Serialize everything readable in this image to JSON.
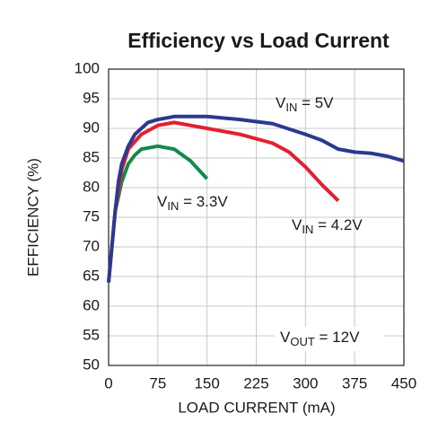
{
  "chart_data": {
    "type": "line",
    "title": "Efficiency vs Load Current",
    "x_label": "LOAD CURRENT (mA)",
    "y_label": "EFFICIENCY (%)",
    "xlim": [
      0,
      450
    ],
    "ylim": [
      50,
      100
    ],
    "xticks": [
      0,
      75,
      150,
      225,
      300,
      375,
      450
    ],
    "yticks": [
      50,
      55,
      60,
      65,
      70,
      75,
      80,
      85,
      90,
      95,
      100
    ],
    "grid": true,
    "series": [
      {
        "label": {
          "main": "V",
          "sub": "IN",
          "tail": " = 5V"
        },
        "color": "#2b3990",
        "x": [
          0,
          5,
          10,
          15,
          20,
          30,
          40,
          50,
          60,
          75,
          100,
          150,
          200,
          250,
          300,
          325,
          350,
          375,
          400,
          425,
          450
        ],
        "values": [
          64,
          70,
          76,
          81,
          84,
          87,
          89,
          90,
          91,
          91.5,
          92,
          92,
          91.5,
          90.8,
          89,
          88,
          86.5,
          86,
          85.8,
          85.3,
          84.5
        ]
      },
      {
        "label": {
          "main": "V",
          "sub": "IN",
          "tail": " = 4.2V"
        },
        "color": "#e3202d",
        "x": [
          0,
          5,
          10,
          20,
          30,
          50,
          75,
          100,
          125,
          150,
          200,
          250,
          275,
          300,
          325,
          350
        ],
        "values": [
          64,
          70,
          76,
          83,
          86.5,
          89,
          90.5,
          91,
          90.5,
          90,
          89,
          87.5,
          86,
          83.5,
          80.5,
          77.8
        ]
      },
      {
        "label": {
          "main": "V",
          "sub": "IN",
          "tail": " = 3.3V"
        },
        "color": "#138a4a",
        "x": [
          10,
          20,
          30,
          40,
          50,
          75,
          100,
          125,
          150
        ],
        "values": [
          76,
          81,
          84,
          85.5,
          86.5,
          87,
          86.5,
          84.5,
          81.5
        ]
      }
    ],
    "annotation": {
      "main": "V",
      "sub": "OUT",
      "tail": " = 12V"
    }
  }
}
